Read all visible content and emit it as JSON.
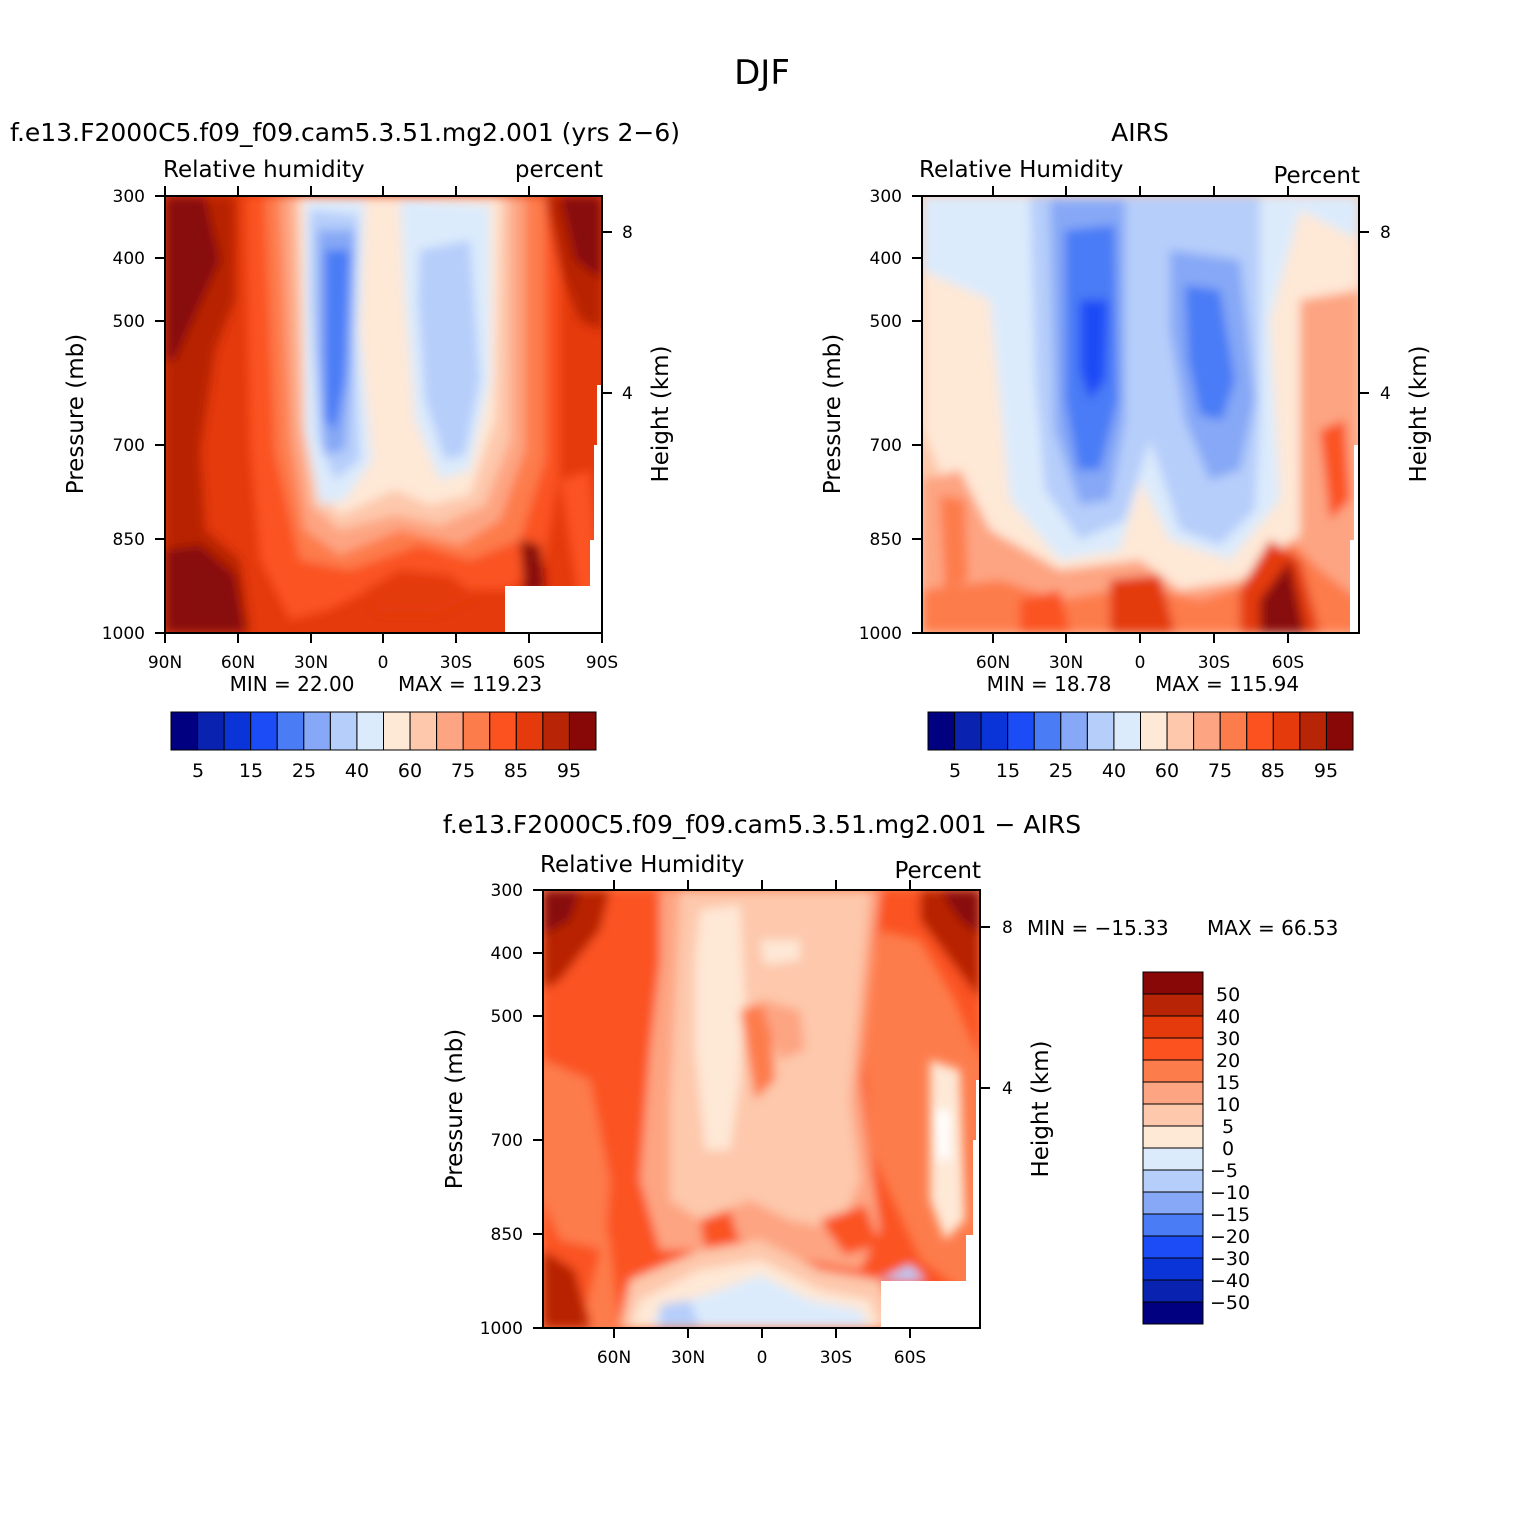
{
  "page_title": "DJF",
  "colors": {
    "rh_levels": [
      "#000080",
      "#0a22b0",
      "#0a34d8",
      "#1c4cf6",
      "#4a7cf6",
      "#86a8f6",
      "#b6cefa",
      "#dcebfc",
      "#fee8d6",
      "#fdc8ac",
      "#fda482",
      "#fd7c4c",
      "#fb5220",
      "#e43a0c",
      "#b82406",
      "#880808"
    ],
    "diff_levels": [
      "#000080",
      "#0a22b0",
      "#0a34d8",
      "#1c4cf6",
      "#4a7cf6",
      "#86a8f6",
      "#b6cefa",
      "#dcebfc",
      "#fee8d6",
      "#fdc8ac",
      "#fda482",
      "#fd7c4c",
      "#fb5220",
      "#e43a0c",
      "#b82406",
      "#880808"
    ]
  },
  "chart_data": [
    {
      "type": "heatmap",
      "title": "f.e13.F2000C5.f09_f09.cam5.3.51.mg2.001 (yrs 2−6)",
      "subtitle_left": "Relative humidity",
      "subtitle_right": "percent",
      "ylabel": "Pressure (mb)",
      "ylabel_right": "Height (km)",
      "xticks": [
        "90N",
        "60N",
        "30N",
        "0",
        "30S",
        "60S",
        "90S"
      ],
      "yticks": [
        "300",
        "400",
        "500",
        "700",
        "850",
        "1000"
      ],
      "right_ticks": [
        "8",
        "4"
      ],
      "ylim": [
        1000,
        300
      ],
      "xlim": [
        90,
        -90
      ],
      "min_label": "MIN = 22.00",
      "max_label": "MAX = 119.23",
      "min": 22.0,
      "max": 119.23,
      "colorbar_labels": [
        "5",
        "15",
        "25",
        "40",
        "60",
        "75",
        "85",
        "95"
      ]
    },
    {
      "type": "heatmap",
      "title": "AIRS",
      "subtitle_left": "Relative Humidity",
      "subtitle_right": "Percent",
      "ylabel": "Pressure (mb)",
      "ylabel_right": "Height (km)",
      "xticks": [
        "60N",
        "30N",
        "0",
        "30S",
        "60S"
      ],
      "yticks": [
        "300",
        "400",
        "500",
        "700",
        "850",
        "1000"
      ],
      "right_ticks": [
        "8",
        "4"
      ],
      "ylim": [
        1000,
        300
      ],
      "min_label": "MIN = 18.78",
      "max_label": "MAX = 115.94",
      "min": 18.78,
      "max": 115.94,
      "colorbar_labels": [
        "5",
        "15",
        "25",
        "40",
        "60",
        "75",
        "85",
        "95"
      ]
    },
    {
      "type": "heatmap",
      "title": "f.e13.F2000C5.f09_f09.cam5.3.51.mg2.001 − AIRS",
      "subtitle_left": "Relative Humidity",
      "subtitle_right": "Percent",
      "ylabel": "Pressure (mb)",
      "ylabel_right": "Height (km)",
      "xticks": [
        "60N",
        "30N",
        "0",
        "30S",
        "60S"
      ],
      "yticks": [
        "300",
        "400",
        "500",
        "700",
        "850",
        "1000"
      ],
      "right_ticks": [
        "8",
        "4"
      ],
      "ylim": [
        1000,
        300
      ],
      "min_label": "MIN = −15.33",
      "max_label": "MAX = 66.53",
      "min": -15.33,
      "max": 66.53,
      "colorbar_labels": [
        "50",
        "40",
        "30",
        "20",
        "15",
        "10",
        "5",
        "0",
        "−5",
        "−10",
        "−15",
        "−20",
        "−30",
        "−40",
        "−50"
      ]
    }
  ]
}
